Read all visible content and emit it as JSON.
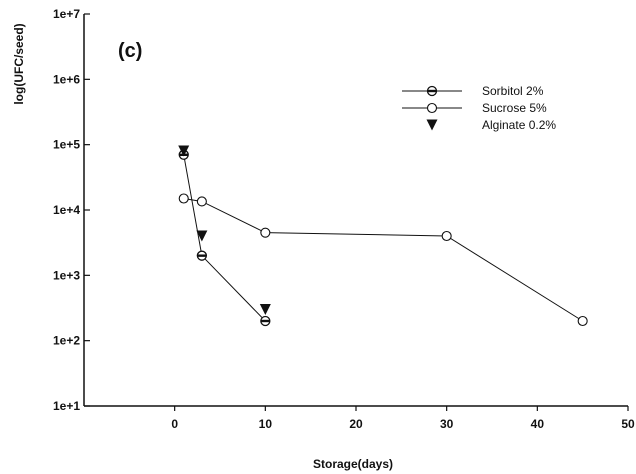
{
  "chart_data": {
    "type": "scatter",
    "panel_label": "(c)",
    "xlabel": "Storage(days)",
    "ylabel": "log(UFC/seed)",
    "xlim": [
      -10,
      50
    ],
    "ylim": [
      10,
      10000000
    ],
    "y_scale": "log",
    "x_ticks": [
      0,
      10,
      20,
      30,
      40,
      50
    ],
    "x_tick_labels": [
      "0",
      "10",
      "20",
      "30",
      "40",
      "50"
    ],
    "y_ticks": [
      10,
      100,
      1000,
      10000,
      100000,
      1000000,
      10000000
    ],
    "y_tick_labels": [
      "1e+1",
      "1e+2",
      "1e+3",
      "1e+4",
      "1e+5",
      "1e+6",
      "1e+7"
    ],
    "grid": false,
    "legend_position": "top-right",
    "series": [
      {
        "name": "Sorbitol 2%",
        "marker": "circle-with-bar",
        "line": true,
        "x": [
          1,
          3,
          10
        ],
        "y": [
          70000,
          2000,
          200
        ]
      },
      {
        "name": "Sucrose 5%",
        "marker": "open-circle",
        "line": true,
        "x": [
          1,
          3,
          10,
          30,
          45
        ],
        "y": [
          15000,
          13500,
          4500,
          4000,
          200
        ]
      },
      {
        "name": "Alginate 0.2%",
        "marker": "filled-triangle-down",
        "line": false,
        "x": [
          1,
          3,
          10
        ],
        "y": [
          80000,
          4000,
          300
        ]
      }
    ]
  }
}
